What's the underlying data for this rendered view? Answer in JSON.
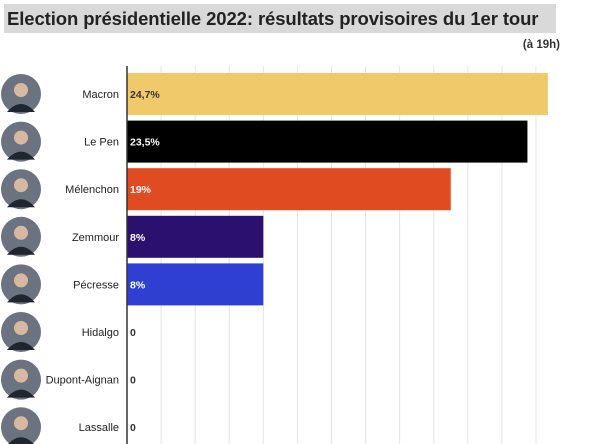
{
  "header": {
    "title": "Election présidentielle 2022: résultats provisoires du 1er tour",
    "subtitle": "(à 19h)"
  },
  "colors": {
    "gridline": "#e3e3e3",
    "axis": "#333333"
  },
  "chart_data": {
    "type": "bar",
    "orientation": "horizontal",
    "title": "Election présidentielle 2022: résultats provisoires du 1er tour",
    "subtitle": "(à 19h)",
    "xlim": [
      0,
      25
    ],
    "grid": true,
    "categories": [
      "Macron",
      "Le Pen",
      "Mélenchon",
      "Zemmour",
      "Pécresse",
      "Hidalgo",
      "Dupont-Aignan",
      "Lassalle"
    ],
    "values": [
      24.7,
      23.5,
      19,
      8,
      8,
      0,
      0,
      0
    ],
    "value_labels": [
      "24,7%",
      "23,5%",
      "19%",
      "8%",
      "8%",
      "0",
      "0",
      "0"
    ],
    "bar_colors": [
      "#f0c96b",
      "#000000",
      "#e04b22",
      "#2b1070",
      "#2f3fd1",
      "#cccccc",
      "#cccccc",
      "#cccccc"
    ],
    "label_colors": [
      "#333333",
      "#ffffff",
      "#ffffff",
      "#ffffff",
      "#ffffff",
      "#333333",
      "#333333",
      "#333333"
    ],
    "avatar_icons": [
      "macron-photo-icon",
      "le-pen-photo-icon",
      "melenchon-photo-icon",
      "zemmour-photo-icon",
      "pecresse-photo-icon",
      "hidalgo-photo-icon",
      "dupont-aignan-photo-icon",
      "lassalle-photo-icon"
    ]
  }
}
